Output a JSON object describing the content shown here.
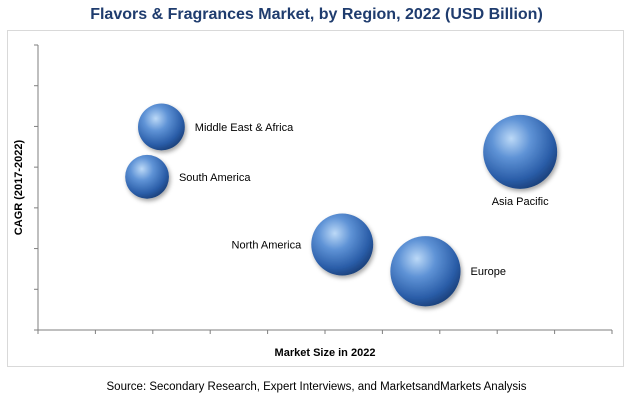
{
  "chart_data": {
    "type": "bubble",
    "title": "Flavors & Fragrances Market, by Region, 2022 (USD Billion)",
    "xlabel": "Market Size in 2022",
    "ylabel": "CAGR (2017-2022)",
    "xlim": [
      0,
      10
    ],
    "ylim": [
      0,
      8
    ],
    "points": [
      {
        "name": "Middle East & Africa",
        "x": 2.15,
        "y": 5.7,
        "size": 0.4
      },
      {
        "name": "South America",
        "x": 1.9,
        "y": 4.3,
        "size": 0.35
      },
      {
        "name": "Asia Pacific",
        "x": 8.4,
        "y": 5.0,
        "size": 1.0
      },
      {
        "name": "North America",
        "x": 5.3,
        "y": 2.4,
        "size": 0.7
      },
      {
        "name": "Europe",
        "x": 6.75,
        "y": 1.65,
        "size": 0.9
      }
    ]
  },
  "footer": {
    "source": "Source: Secondary Research, Expert Interviews, and MarketsandMarkets Analysis"
  }
}
